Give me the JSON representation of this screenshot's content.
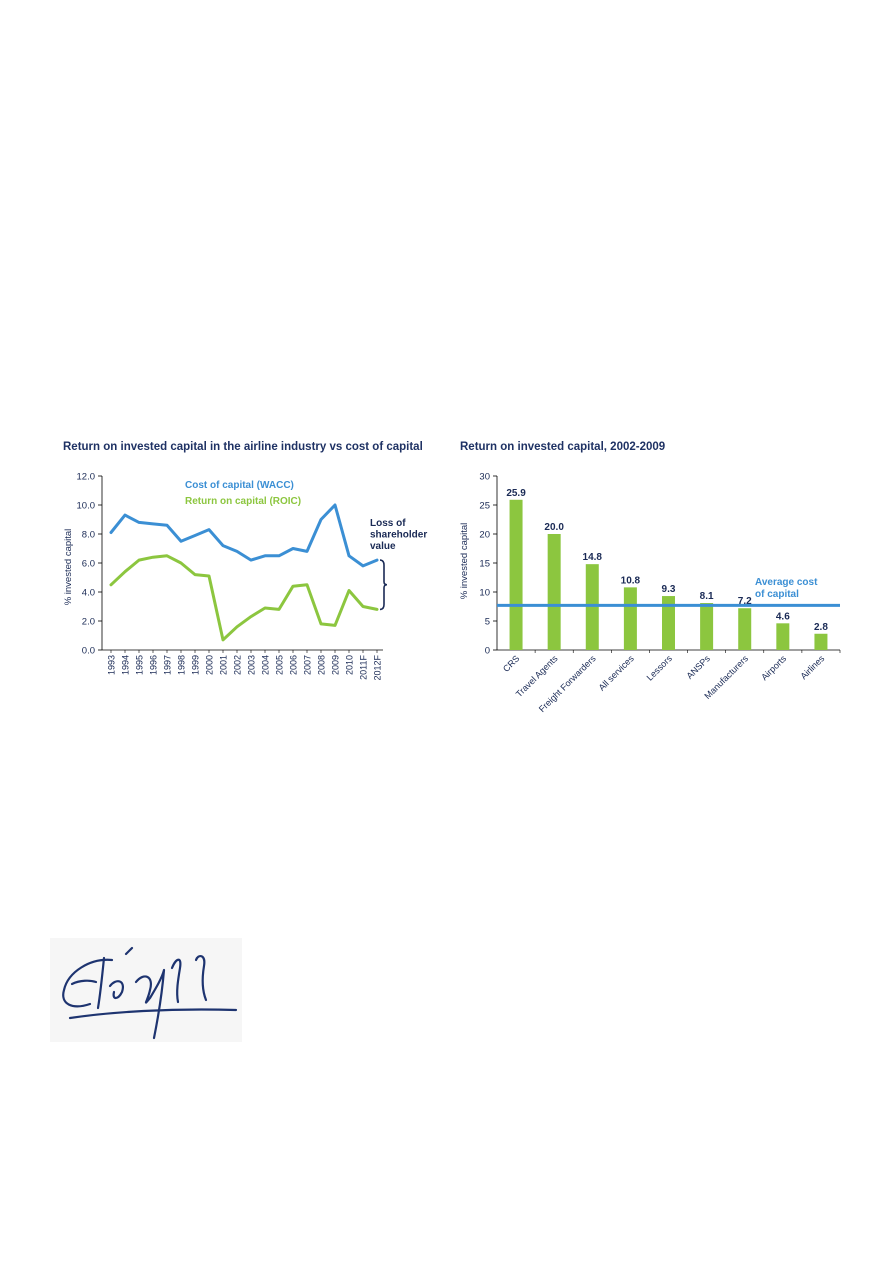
{
  "chart_data": [
    {
      "type": "line",
      "title": "Return on invested capital in the airline industry vs cost of capital",
      "ylabel": "% invested capital",
      "ylim": [
        0,
        12
      ],
      "yticks": [
        "0.0",
        "2.0",
        "4.0",
        "6.0",
        "8.0",
        "10.0",
        "12.0"
      ],
      "x": [
        "1993",
        "1994",
        "1995",
        "1996",
        "1997",
        "1998",
        "1999",
        "2000",
        "2001",
        "2002",
        "2003",
        "2004",
        "2005",
        "2006",
        "2007",
        "2008",
        "2009",
        "2010",
        "2011F",
        "2012F"
      ],
      "series": [
        {
          "name": "Cost of capital (WACC)",
          "color": "#3b8fd4",
          "values": [
            8.1,
            9.3,
            8.8,
            8.7,
            8.6,
            7.5,
            7.9,
            8.3,
            7.2,
            6.8,
            6.2,
            6.5,
            6.5,
            7.0,
            6.8,
            9.0,
            10.0,
            6.5,
            5.8,
            6.2
          ]
        },
        {
          "name": "Return on capital (ROIC)",
          "color": "#8cc63f",
          "values": [
            4.5,
            5.4,
            6.2,
            6.4,
            6.5,
            6.0,
            5.2,
            5.1,
            0.7,
            1.6,
            2.3,
            2.9,
            2.8,
            4.4,
            4.5,
            1.8,
            1.7,
            4.1,
            3.0,
            2.8
          ]
        }
      ],
      "annotation": "Loss of shareholder value"
    },
    {
      "type": "bar",
      "title": "Return on invested capital, 2002-2009",
      "ylabel": "% invested capital",
      "ylim": [
        0,
        30
      ],
      "yticks": [
        "0",
        "5",
        "10",
        "15",
        "20",
        "25",
        "30"
      ],
      "categories": [
        "CRS",
        "Travel Agents",
        "Freight Forwarders",
        "All services",
        "Lessors",
        "ANSPs",
        "Manufacturers",
        "Airports",
        "Airlines"
      ],
      "values": [
        25.9,
        20.0,
        14.8,
        10.8,
        9.3,
        8.1,
        7.2,
        4.6,
        2.8
      ],
      "value_labels": [
        "25.9",
        "20.0",
        "14.8",
        "10.8",
        "9.3",
        "8.1",
        "7.2",
        "4.6",
        "2.8"
      ],
      "bar_color": "#8cc63f",
      "reference_line": {
        "value": 7.7,
        "label": "Average cost of capital",
        "color": "#3b8fd4"
      }
    }
  ]
}
